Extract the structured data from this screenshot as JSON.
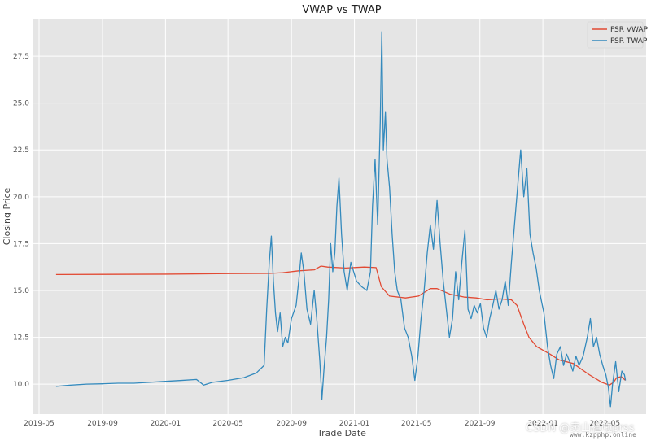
{
  "chart_data": {
    "type": "line",
    "title": "VWAP vs TWAP",
    "xlabel": "Trade Date",
    "ylabel": "Closing Price",
    "xlim": [
      "2019-04-20",
      "2022-07-20"
    ],
    "ylim": [
      8.4,
      29.5
    ],
    "x_ticks": [
      "2019-05",
      "2019-09",
      "2020-01",
      "2020-05",
      "2020-09",
      "2021-01",
      "2021-05",
      "2021-09",
      "2022-01",
      "2022-05"
    ],
    "y_ticks": [
      10.0,
      12.5,
      15.0,
      17.5,
      20.0,
      22.5,
      25.0,
      27.5
    ],
    "y_tick_labels": [
      "10.0",
      "12.5",
      "15.0",
      "17.5",
      "20.0",
      "22.5",
      "25.0",
      "27.5"
    ],
    "grid": true,
    "legend_position": "top-right",
    "series": [
      {
        "name": "FSR VWAP",
        "color": "#e24a33",
        "points": [
          [
            "2019-06-03",
            15.85
          ],
          [
            "2019-09-01",
            15.86
          ],
          [
            "2020-01-01",
            15.87
          ],
          [
            "2020-05-01",
            15.9
          ],
          [
            "2020-07-20",
            15.91
          ],
          [
            "2020-08-15",
            15.95
          ],
          [
            "2020-09-15",
            16.05
          ],
          [
            "2020-10-15",
            16.1
          ],
          [
            "2020-10-28",
            16.3
          ],
          [
            "2020-11-10",
            16.25
          ],
          [
            "2020-12-15",
            16.2
          ],
          [
            "2021-01-20",
            16.25
          ],
          [
            "2021-02-12",
            16.22
          ],
          [
            "2021-02-22",
            15.2
          ],
          [
            "2021-03-10",
            14.7
          ],
          [
            "2021-04-10",
            14.6
          ],
          [
            "2021-05-05",
            14.7
          ],
          [
            "2021-05-28",
            15.1
          ],
          [
            "2021-06-10",
            15.1
          ],
          [
            "2021-07-05",
            14.8
          ],
          [
            "2021-08-01",
            14.65
          ],
          [
            "2021-08-25",
            14.6
          ],
          [
            "2021-09-15",
            14.5
          ],
          [
            "2021-10-10",
            14.55
          ],
          [
            "2021-11-01",
            14.5
          ],
          [
            "2021-11-12",
            14.2
          ],
          [
            "2021-11-25",
            13.2
          ],
          [
            "2021-12-05",
            12.5
          ],
          [
            "2021-12-20",
            12.0
          ],
          [
            "2022-01-15",
            11.6
          ],
          [
            "2022-02-01",
            11.3
          ],
          [
            "2022-03-01",
            11.1
          ],
          [
            "2022-04-01",
            10.5
          ],
          [
            "2022-04-25",
            10.1
          ],
          [
            "2022-05-10",
            9.95
          ],
          [
            "2022-05-18",
            10.1
          ],
          [
            "2022-05-24",
            10.35
          ],
          [
            "2022-06-02",
            10.4
          ],
          [
            "2022-06-10",
            10.2
          ]
        ]
      },
      {
        "name": "FSR TWAP",
        "color": "#348abd",
        "points": [
          [
            "2019-06-03",
            9.88
          ],
          [
            "2019-07-01",
            9.95
          ],
          [
            "2019-08-01",
            10.0
          ],
          [
            "2019-09-01",
            10.02
          ],
          [
            "2019-10-01",
            10.05
          ],
          [
            "2019-11-01",
            10.05
          ],
          [
            "2019-12-01",
            10.1
          ],
          [
            "2020-01-01",
            10.15
          ],
          [
            "2020-02-01",
            10.2
          ],
          [
            "2020-03-01",
            10.25
          ],
          [
            "2020-03-15",
            9.95
          ],
          [
            "2020-04-01",
            10.1
          ],
          [
            "2020-05-01",
            10.2
          ],
          [
            "2020-06-01",
            10.35
          ],
          [
            "2020-06-25",
            10.6
          ],
          [
            "2020-07-10",
            11.0
          ],
          [
            "2020-07-15",
            14.0
          ],
          [
            "2020-07-20",
            16.5
          ],
          [
            "2020-07-24",
            17.9
          ],
          [
            "2020-07-28",
            15.5
          ],
          [
            "2020-08-01",
            13.8
          ],
          [
            "2020-08-05",
            12.8
          ],
          [
            "2020-08-10",
            13.8
          ],
          [
            "2020-08-15",
            12.0
          ],
          [
            "2020-08-20",
            12.5
          ],
          [
            "2020-08-25",
            12.2
          ],
          [
            "2020-09-01",
            13.5
          ],
          [
            "2020-09-10",
            14.2
          ],
          [
            "2020-09-15",
            15.5
          ],
          [
            "2020-09-20",
            17.0
          ],
          [
            "2020-09-25",
            16.0
          ],
          [
            "2020-10-01",
            14.0
          ],
          [
            "2020-10-08",
            13.2
          ],
          [
            "2020-10-15",
            15.0
          ],
          [
            "2020-10-20",
            13.5
          ],
          [
            "2020-10-26",
            11.2
          ],
          [
            "2020-10-30",
            9.2
          ],
          [
            "2020-11-03",
            10.8
          ],
          [
            "2020-11-08",
            12.5
          ],
          [
            "2020-11-12",
            14.5
          ],
          [
            "2020-11-16",
            17.5
          ],
          [
            "2020-11-20",
            16.0
          ],
          [
            "2020-11-24",
            17.0
          ],
          [
            "2020-11-28",
            19.5
          ],
          [
            "2020-12-02",
            21.0
          ],
          [
            "2020-12-07",
            18.0
          ],
          [
            "2020-12-12",
            16.0
          ],
          [
            "2020-12-18",
            15.0
          ],
          [
            "2020-12-25",
            16.5
          ],
          [
            "2021-01-05",
            15.5
          ],
          [
            "2021-01-15",
            15.2
          ],
          [
            "2021-01-25",
            15.0
          ],
          [
            "2021-02-01",
            16.0
          ],
          [
            "2021-02-05",
            19.5
          ],
          [
            "2021-02-10",
            22.0
          ],
          [
            "2021-02-15",
            18.5
          ],
          [
            "2021-02-20",
            24.0
          ],
          [
            "2021-02-23",
            28.8
          ],
          [
            "2021-02-26",
            22.5
          ],
          [
            "2021-03-02",
            24.5
          ],
          [
            "2021-03-05",
            22.0
          ],
          [
            "2021-03-10",
            20.5
          ],
          [
            "2021-03-15",
            18.0
          ],
          [
            "2021-03-20",
            16.0
          ],
          [
            "2021-03-25",
            15.0
          ],
          [
            "2021-04-01",
            14.5
          ],
          [
            "2021-04-08",
            13.0
          ],
          [
            "2021-04-15",
            12.5
          ],
          [
            "2021-04-22",
            11.5
          ],
          [
            "2021-04-28",
            10.2
          ],
          [
            "2021-05-04",
            11.5
          ],
          [
            "2021-05-10",
            13.5
          ],
          [
            "2021-05-16",
            15.0
          ],
          [
            "2021-05-22",
            17.0
          ],
          [
            "2021-05-28",
            18.5
          ],
          [
            "2021-06-03",
            17.2
          ],
          [
            "2021-06-10",
            19.8
          ],
          [
            "2021-06-16",
            17.5
          ],
          [
            "2021-06-22",
            15.5
          ],
          [
            "2021-06-28",
            14.0
          ],
          [
            "2021-07-04",
            12.5
          ],
          [
            "2021-07-10",
            13.5
          ],
          [
            "2021-07-16",
            16.0
          ],
          [
            "2021-07-22",
            14.5
          ],
          [
            "2021-07-28",
            16.5
          ],
          [
            "2021-08-03",
            18.2
          ],
          [
            "2021-08-09",
            14.0
          ],
          [
            "2021-08-15",
            13.5
          ],
          [
            "2021-08-21",
            14.2
          ],
          [
            "2021-08-27",
            13.8
          ],
          [
            "2021-09-02",
            14.3
          ],
          [
            "2021-09-08",
            13.0
          ],
          [
            "2021-09-14",
            12.5
          ],
          [
            "2021-09-20",
            13.5
          ],
          [
            "2021-09-26",
            14.2
          ],
          [
            "2021-10-02",
            15.0
          ],
          [
            "2021-10-08",
            14.0
          ],
          [
            "2021-10-14",
            14.5
          ],
          [
            "2021-10-20",
            15.5
          ],
          [
            "2021-10-26",
            14.2
          ],
          [
            "2021-11-01",
            16.5
          ],
          [
            "2021-11-07",
            18.5
          ],
          [
            "2021-11-13",
            20.5
          ],
          [
            "2021-11-19",
            22.5
          ],
          [
            "2021-11-25",
            20.0
          ],
          [
            "2021-12-01",
            21.5
          ],
          [
            "2021-12-07",
            18.0
          ],
          [
            "2021-12-13",
            17.0
          ],
          [
            "2021-12-19",
            16.2
          ],
          [
            "2021-12-25",
            15.0
          ],
          [
            "2022-01-03",
            13.8
          ],
          [
            "2022-01-10",
            12.0
          ],
          [
            "2022-01-16",
            11.0
          ],
          [
            "2022-01-22",
            10.3
          ],
          [
            "2022-01-28",
            11.6
          ],
          [
            "2022-02-04",
            12.0
          ],
          [
            "2022-02-10",
            11.0
          ],
          [
            "2022-02-16",
            11.6
          ],
          [
            "2022-02-22",
            11.2
          ],
          [
            "2022-02-28",
            10.7
          ],
          [
            "2022-03-06",
            11.5
          ],
          [
            "2022-03-12",
            11.0
          ],
          [
            "2022-03-20",
            11.5
          ],
          [
            "2022-03-28",
            12.5
          ],
          [
            "2022-04-03",
            13.5
          ],
          [
            "2022-04-09",
            12.0
          ],
          [
            "2022-04-15",
            12.5
          ],
          [
            "2022-04-21",
            11.6
          ],
          [
            "2022-04-27",
            11.0
          ],
          [
            "2022-05-03",
            10.5
          ],
          [
            "2022-05-08",
            9.8
          ],
          [
            "2022-05-12",
            8.8
          ],
          [
            "2022-05-16",
            10.0
          ],
          [
            "2022-05-22",
            11.2
          ],
          [
            "2022-05-28",
            9.6
          ],
          [
            "2022-06-03",
            10.7
          ],
          [
            "2022-06-08",
            10.5
          ],
          [
            "2022-06-10",
            10.2
          ]
        ]
      }
    ]
  },
  "watermark": {
    "text": "CSDN @卖山楂啦prss",
    "domain": "www.kzpphp.online"
  }
}
